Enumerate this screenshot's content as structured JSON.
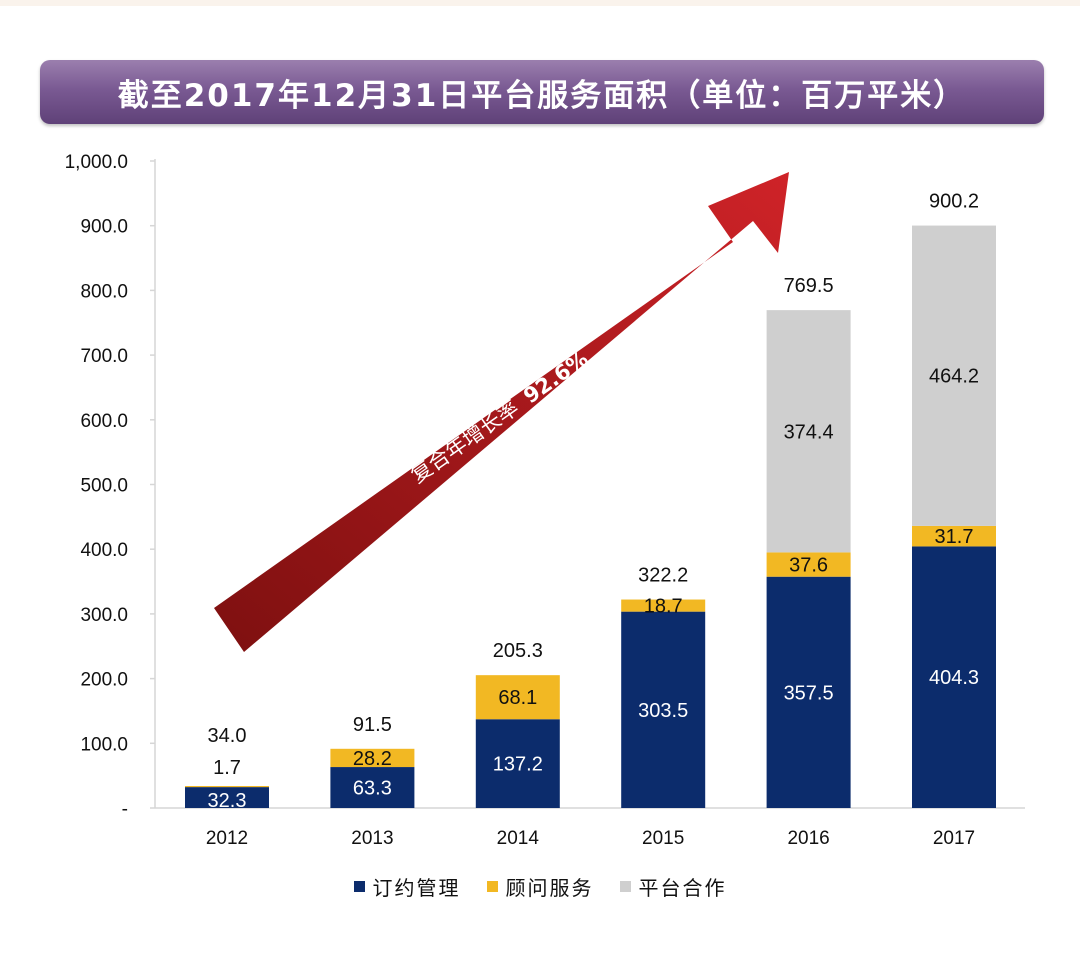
{
  "chart_data": {
    "type": "bar",
    "stacked": true,
    "title": "截至2017年12月31日平台服务面积（单位：百万平米）",
    "categories": [
      "2012",
      "2013",
      "2014",
      "2015",
      "2016",
      "2017"
    ],
    "series": [
      {
        "name": "订约管理",
        "color": "#0c2c6c",
        "values": [
          32.3,
          63.3,
          137.2,
          303.5,
          357.5,
          404.3
        ]
      },
      {
        "name": "顾问服务",
        "color": "#f2b823",
        "values": [
          1.7,
          28.2,
          68.1,
          18.7,
          37.6,
          31.7
        ]
      },
      {
        "name": "平台合作",
        "color": "#cfcfcf",
        "values": [
          null,
          null,
          null,
          null,
          374.4,
          464.2
        ]
      }
    ],
    "segment_labels": [
      [
        "32.3",
        "63.3",
        "137.2",
        "303.5",
        "357.5",
        "404.3"
      ],
      [
        "1.7",
        "28.2",
        "68.1",
        "18.7",
        "37.6",
        "31.7"
      ],
      [
        "",
        "",
        "",
        "",
        "374.4",
        "464.2"
      ]
    ],
    "totals": [
      "34.0",
      "91.5",
      "205.3",
      "322.2",
      "769.5",
      "900.2"
    ],
    "total_values": [
      34.0,
      91.5,
      205.3,
      322.2,
      769.5,
      900.2
    ],
    "ylim": [
      0,
      1000
    ],
    "yticks": [
      0,
      100,
      200,
      300,
      400,
      500,
      600,
      700,
      800,
      900,
      1000
    ],
    "ytick_labels": [
      "-",
      "100.0",
      "200.0",
      "300.0",
      "400.0",
      "500.0",
      "600.0",
      "700.0",
      "800.0",
      "900.0",
      "1,000.0"
    ],
    "grid": false,
    "legend_position": "bottom",
    "annotation": {
      "text": "复合年增长率",
      "value": "92.6%",
      "color": "#a61b1f"
    }
  }
}
